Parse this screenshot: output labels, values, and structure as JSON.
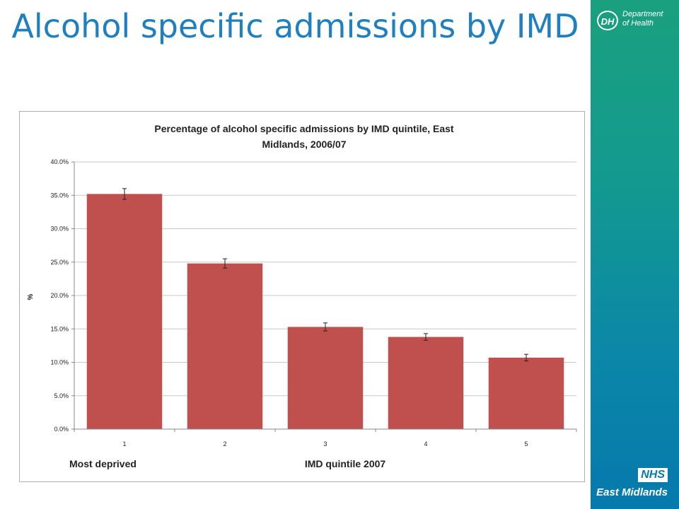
{
  "slide": {
    "title": "Alcohol specific admissions by IMD"
  },
  "branding": {
    "dh_mark": "DH",
    "dh_name_line1": "Department",
    "dh_name_line2": "of Health",
    "nhs_mark": "NHS",
    "nhs_region": "East Midlands",
    "band_colors": [
      "#1aa07e",
      "#0679ad"
    ]
  },
  "chart_data": {
    "type": "bar",
    "title_line1": "Percentage of alcohol specific admissions by IMD quintile, East",
    "title_line2": "Midlands, 2006/07",
    "categories": [
      "1",
      "2",
      "3",
      "4",
      "5"
    ],
    "values": [
      35.2,
      24.8,
      15.3,
      13.8,
      10.7
    ],
    "error_bars": [
      0.8,
      0.7,
      0.6,
      0.5,
      0.5
    ],
    "xlabel": "IMD  quintile 2007",
    "xlabel_note": "Most deprived",
    "ylabel": "%",
    "ylim": [
      0,
      40
    ],
    "yticks": [
      "0.0%",
      "5.0%",
      "10.0%",
      "15.0%",
      "20.0%",
      "25.0%",
      "30.0%",
      "35.0%",
      "40.0%"
    ],
    "bar_color": "#c0504d",
    "grid": true,
    "legend": "none"
  }
}
